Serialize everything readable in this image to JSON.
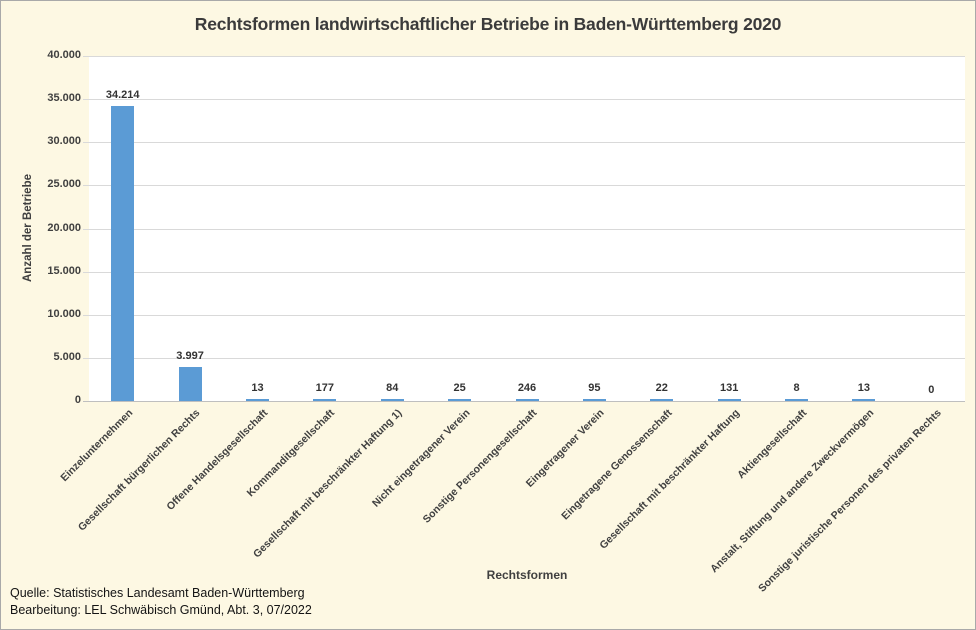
{
  "page": {
    "background_color": "#FDF8E3",
    "plot_background_color": "#FFFFFF",
    "accent_color": "#5B9BD5",
    "gridline_color": "#D9D9D9"
  },
  "chart_data": {
    "type": "bar",
    "title": "Rechtsformen landwirtschaftlicher Betriebe in Baden-Württemberg 2020",
    "xlabel": "Rechtsformen",
    "ylabel": "Anzahl der Betriebe",
    "ylim": [
      0,
      40000
    ],
    "ytick_step": 5000,
    "ytick_labels": [
      "0",
      "5.000",
      "10.000",
      "15.000",
      "20.000",
      "25.000",
      "30.000",
      "35.000",
      "40.000"
    ],
    "grid": true,
    "legend": "none",
    "bar_color": "#5B9BD5",
    "categories": [
      "Einzelunternehmen",
      "Gesellschaft bürgerlichen Rechts",
      "Offene Handelsgesellschaft",
      "Kommanditgesellschaft",
      "Gesellschaft mit beschränkter Haftung 1)",
      "Nicht eingetragener Verein",
      "Sonstige Personengesellschaft",
      "Eingetragener Verein",
      "Eingetragene Genossenschaft",
      "Gesellschaft mit beschränkter Haftung",
      "Aktiengesellschaft",
      "Anstalt, Stiftung und andere Zweckvermögen",
      "Sonstige juristische Personen des privaten Rechts"
    ],
    "values": [
      34214,
      3997,
      13,
      177,
      84,
      25,
      246,
      95,
      22,
      131,
      8,
      13,
      0
    ],
    "value_labels": [
      "34.214",
      "3.997",
      "13",
      "177",
      "84",
      "25",
      "246",
      "95",
      "22",
      "131",
      "8",
      "13",
      "0"
    ]
  },
  "footer": {
    "source_line": "Quelle: Statistisches Landesamt Baden-Württemberg",
    "editing_line": "Bearbeitung: LEL Schwäbisch Gmünd, Abt. 3, 07/2022"
  }
}
